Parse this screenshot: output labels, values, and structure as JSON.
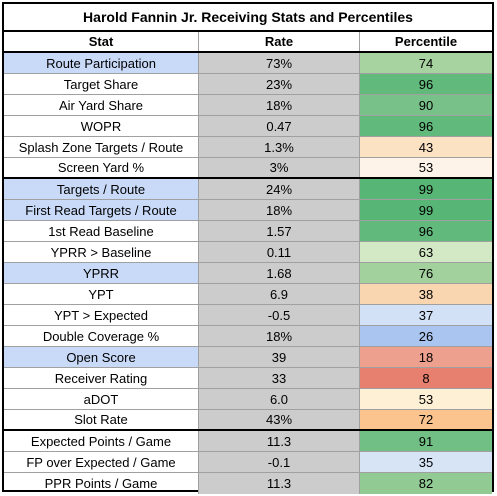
{
  "title": "Harold Fannin Jr. Receiving Stats and Percentiles",
  "headers": {
    "stat": "Stat",
    "rate": "Rate",
    "percentile": "Percentile"
  },
  "colors": {
    "highlight_stat": "#c9daf8",
    "rate_bg": "#cccccc"
  },
  "rows": [
    {
      "stat": "Route Participation",
      "rate": "73%",
      "percentile": "74",
      "color": "#a7d3a0",
      "highlight": true
    },
    {
      "stat": "Target Share",
      "rate": "23%",
      "percentile": "96",
      "color": "#62b97c",
      "highlight": false
    },
    {
      "stat": "Air Yard Share",
      "rate": "18%",
      "percentile": "90",
      "color": "#78c28a",
      "highlight": false
    },
    {
      "stat": "WOPR",
      "rate": "0.47",
      "percentile": "96",
      "color": "#62b97c",
      "highlight": false
    },
    {
      "stat": "Splash Zone Targets / Route",
      "rate": "1.3%",
      "percentile": "43",
      "color": "#fbe2c2",
      "highlight": false
    },
    {
      "stat": "Screen Yard %",
      "rate": "3%",
      "percentile": "53",
      "color": "#fdf3e8",
      "highlight": false
    },
    {
      "stat": "Targets / Route",
      "rate": "24%",
      "percentile": "99",
      "color": "#57b575",
      "highlight": true
    },
    {
      "stat": "First Read Targets / Route",
      "rate": "18%",
      "percentile": "99",
      "color": "#57b575",
      "highlight": true
    },
    {
      "stat": "1st Read Baseline",
      "rate": "1.57",
      "percentile": "96",
      "color": "#62b97c",
      "highlight": false
    },
    {
      "stat": "YPRR > Baseline",
      "rate": "0.11",
      "percentile": "63",
      "color": "#d3e8c4",
      "highlight": false
    },
    {
      "stat": "YPRR",
      "rate": "1.68",
      "percentile": "76",
      "color": "#a2d19d",
      "highlight": true
    },
    {
      "stat": "YPT",
      "rate": "6.9",
      "percentile": "38",
      "color": "#f9d5b0",
      "highlight": false
    },
    {
      "stat": "YPT > Expected",
      "rate": "-0.5",
      "percentile": "37",
      "color": "#d3e1f6",
      "highlight": false
    },
    {
      "stat": "Double Coverage %",
      "rate": "18%",
      "percentile": "26",
      "color": "#aac5ef",
      "highlight": false
    },
    {
      "stat": "Open Score",
      "rate": "39",
      "percentile": "18",
      "color": "#eda08d",
      "highlight": true
    },
    {
      "stat": "Receiver Rating",
      "rate": "33",
      "percentile": "8",
      "color": "#e8806f",
      "highlight": false
    },
    {
      "stat": "aDOT",
      "rate": "6.0",
      "percentile": "53",
      "color": "#fdf0d4",
      "highlight": false
    },
    {
      "stat": "Slot Rate",
      "rate": "43%",
      "percentile": "72",
      "color": "#fbc48f",
      "highlight": false
    },
    {
      "stat": "Expected Points / Game",
      "rate": "11.3",
      "percentile": "91",
      "color": "#72bf85",
      "highlight": false
    },
    {
      "stat": "FP over Expected / Game",
      "rate": "-0.1",
      "percentile": "35",
      "color": "#d7e4f6",
      "highlight": false
    },
    {
      "stat": "PPR Points / Game",
      "rate": "11.3",
      "percentile": "82",
      "color": "#92ca94",
      "highlight": false
    }
  ]
}
